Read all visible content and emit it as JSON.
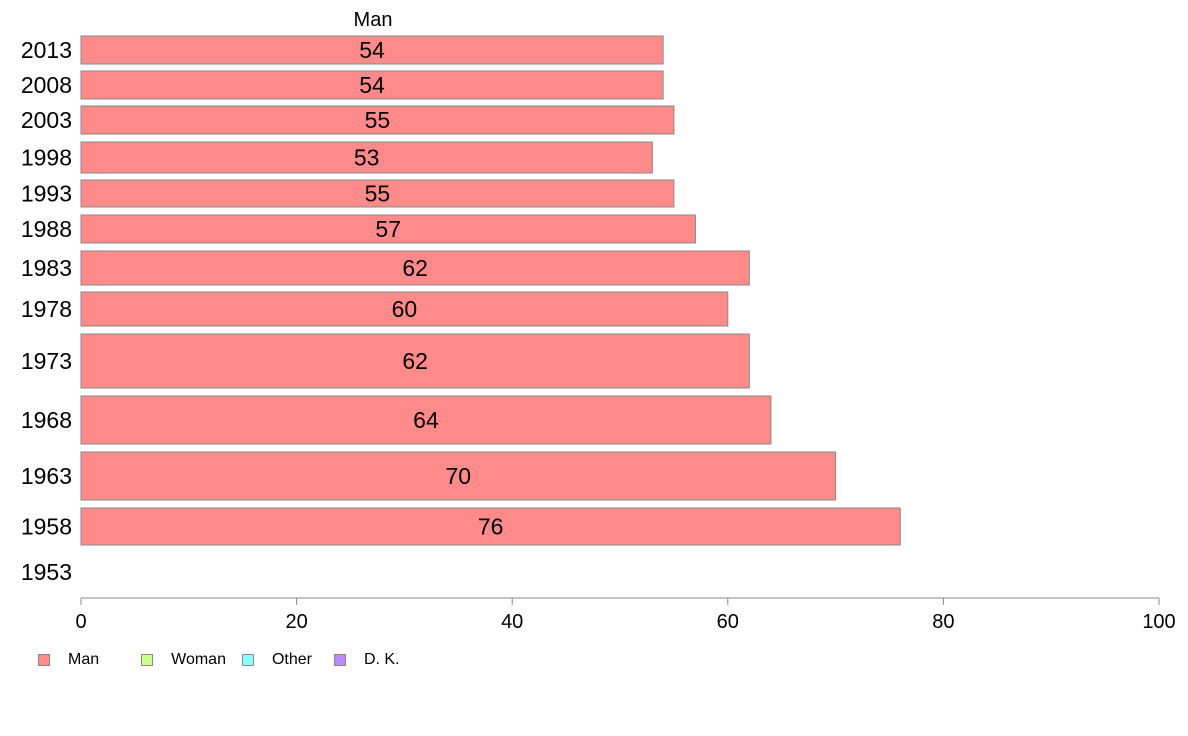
{
  "chart_data": {
    "type": "bar",
    "orientation": "horizontal",
    "title": "Man",
    "categories": [
      "2013",
      "2008",
      "2003",
      "1998",
      "1993",
      "1988",
      "1983",
      "1978",
      "1973",
      "1968",
      "1963",
      "1958",
      "1953"
    ],
    "series": [
      {
        "name": "Man",
        "color": "#ff8a8a",
        "values": [
          54,
          54,
          55,
          53,
          55,
          57,
          62,
          60,
          62,
          64,
          70,
          76,
          null
        ]
      }
    ],
    "data_labels": [
      "54",
      "54",
      "55",
      "53",
      "55",
      "57",
      "62",
      "60",
      "62",
      "64",
      "70",
      "76",
      ""
    ],
    "xlim": [
      0,
      100
    ],
    "xticks": [
      0,
      20,
      40,
      60,
      80,
      100
    ],
    "grid": false,
    "legend_position": "bottom-left",
    "legend": [
      {
        "name": "Man",
        "color": "#ff8a8a"
      },
      {
        "name": "Woman",
        "color": "#ccff88"
      },
      {
        "name": "Other",
        "color": "#88ffff"
      },
      {
        "name": "D. K.",
        "color": "#bb88ff"
      }
    ]
  }
}
